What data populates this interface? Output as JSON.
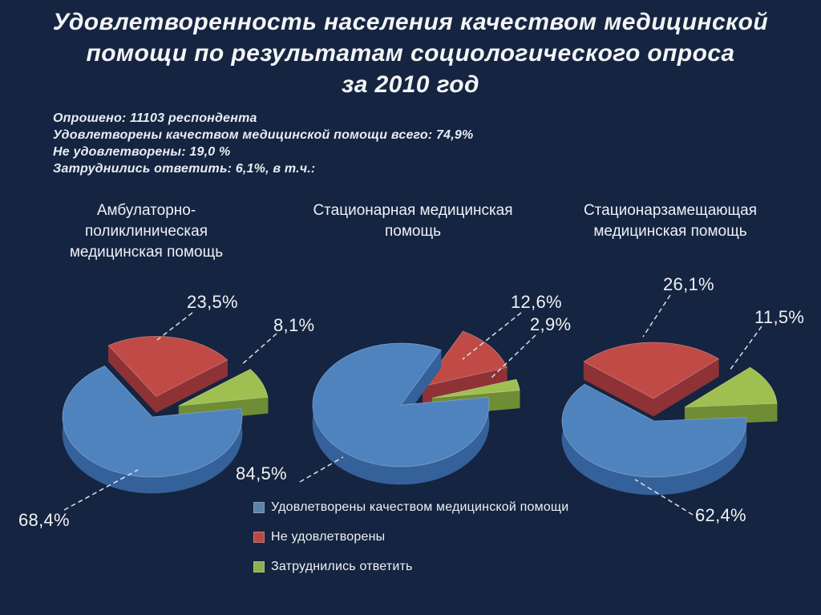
{
  "header": {
    "lines": [
      "Удовлетворенность населения качеством медицинской",
      "помощи по результатам социологического опроса",
      "за 2010 год"
    ]
  },
  "summary": {
    "lines": [
      "Опрошено: 11103 респондента",
      "Удовлетворены качеством медицинской помощи всего: 74,9%",
      "Не удовлетворены: 19,0 %",
      "Затруднились ответить: 6,1%, в т.ч.:"
    ]
  },
  "legend": {
    "items": [
      {
        "label": "Удовлетворены качеством медицинской помощи",
        "color": "#5b82ab"
      },
      {
        "label": "Не удовлетворены",
        "color": "#b84a46"
      },
      {
        "label": "Затруднились ответить",
        "color": "#8fae4e"
      }
    ]
  },
  "colors": {
    "background": "#152440",
    "satisfied_top": "#4f83be",
    "satisfied_side": "#35619a",
    "satisfied_dark": "#27496f",
    "not_satisfied_top": "#c04b46",
    "not_satisfied_side": "#8e3236",
    "not_satisfied_dark": "#7c2b2f",
    "undecided_top": "#9fbf51",
    "undecided_side": "#6f8d34",
    "undecided_dark": "#5f7a2b",
    "text": "#f2f4f7"
  },
  "chart_data": [
    {
      "type": "pie",
      "title": "Амбулаторно-поликлиническая медицинская помощь",
      "labels": [
        "Удовлетворены качеством медицинской помощи",
        "Не удовлетворены",
        "Затруднились ответить"
      ],
      "values": [
        68.4,
        23.5,
        8.1
      ],
      "display_values": [
        "68,4%",
        "23,5%",
        "8,1%"
      ],
      "colors": [
        "#4f83be",
        "#c04b46",
        "#9fbf51"
      ],
      "legend_position": "bottom-center-shared"
    },
    {
      "type": "pie",
      "title": "Стационарная медицинская помощь",
      "labels": [
        "Удовлетворены качеством медицинской помощи",
        "Не удовлетворены",
        "Затруднились ответить"
      ],
      "values": [
        84.5,
        12.6,
        2.9
      ],
      "display_values": [
        "84,5%",
        "12,6%",
        "2,9%"
      ],
      "colors": [
        "#4f83be",
        "#c04b46",
        "#9fbf51"
      ],
      "legend_position": "bottom-center-shared"
    },
    {
      "type": "pie",
      "title": "Стационарзамещающая медицинская помощь",
      "labels": [
        "Удовлетворены качеством медицинской помощи",
        "Не удовлетворены",
        "Затруднились ответить"
      ],
      "values": [
        62.4,
        26.1,
        11.5
      ],
      "display_values": [
        "62,4%",
        "26,1%",
        "11,5%"
      ],
      "colors": [
        "#4f83be",
        "#c04b46",
        "#9fbf51"
      ],
      "legend_position": "bottom-center-shared"
    }
  ]
}
